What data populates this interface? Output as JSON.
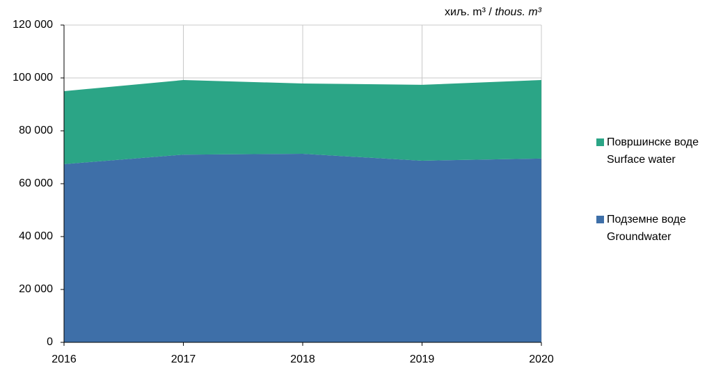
{
  "chart_data": {
    "type": "stacked_area",
    "units": [
      "хиљ. m³",
      "/",
      "thous. m³"
    ],
    "categories": [
      "2016",
      "2017",
      "2018",
      "2019",
      "2020"
    ],
    "series": [
      {
        "name": "Подземне воде",
        "name_en": "Groundwater",
        "color": "#3e6fa8",
        "values": [
          67400,
          71000,
          71300,
          68700,
          69500
        ]
      },
      {
        "name": "Површинске воде",
        "name_en": "Surface water",
        "color": "#2ba586",
        "values": [
          27600,
          28200,
          26600,
          28700,
          29700
        ]
      }
    ],
    "ylim": [
      0,
      120000
    ],
    "yticks": [
      0,
      {
        "value": 20000,
        "label": "20 000"
      },
      {
        "value": 40000,
        "label": "40 000"
      },
      {
        "value": 60000,
        "label": "60 000"
      },
      {
        "value": 80000,
        "label": "80 000"
      },
      {
        "value": 100000,
        "label": "100 000"
      },
      {
        "value": 120000,
        "label": "120 000"
      }
    ],
    "grid": true
  }
}
